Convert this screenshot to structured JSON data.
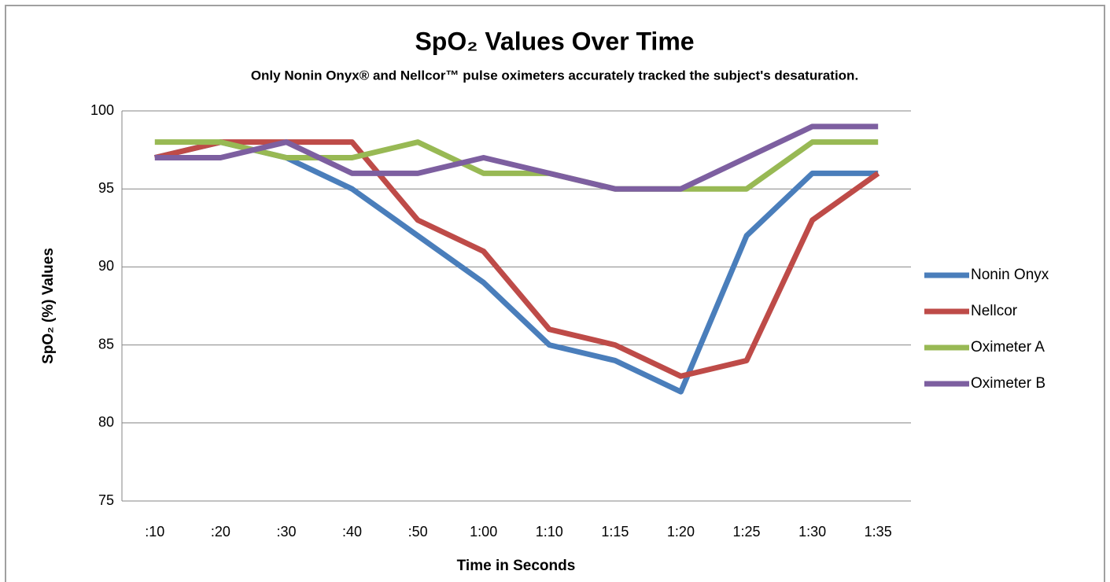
{
  "chart_data": {
    "type": "line",
    "title": "SpO₂ Values Over Time",
    "subtitle": "Only Nonin Onyx® and Nellcor™ pulse oximeters accurately tracked the subject's desaturation.",
    "x_label": "Time in Seconds",
    "y_label": "SpO₂ (%) Values",
    "categories": [
      ":10",
      ":20",
      ":30",
      ":40",
      ":50",
      "1:00",
      "1:10",
      "1:15",
      "1:20",
      "1:25",
      "1:30",
      "1:35"
    ],
    "series": [
      {
        "name": "Nonin Onyx",
        "color": "#4a7ebb",
        "values": [
          97,
          98,
          97,
          95,
          92,
          89,
          85,
          84,
          82,
          92,
          96,
          96
        ]
      },
      {
        "name": "Nellcor",
        "color": "#be4b48",
        "values": [
          97,
          98,
          98,
          98,
          93,
          91,
          86,
          85,
          83,
          84,
          93,
          96
        ]
      },
      {
        "name": "Oximeter A",
        "color": "#98b954",
        "values": [
          98,
          98,
          97,
          97,
          98,
          96,
          96,
          95,
          95,
          95,
          98,
          98
        ]
      },
      {
        "name": "Oximeter B",
        "color": "#7d5fa0",
        "values": [
          97,
          97,
          98,
          96,
          96,
          97,
          96,
          95,
          95,
          97,
          99,
          99
        ]
      }
    ],
    "ylim": [
      75,
      100
    ],
    "yticks": [
      75,
      80,
      85,
      90,
      95,
      100
    ],
    "grid": true,
    "legend": "right"
  }
}
